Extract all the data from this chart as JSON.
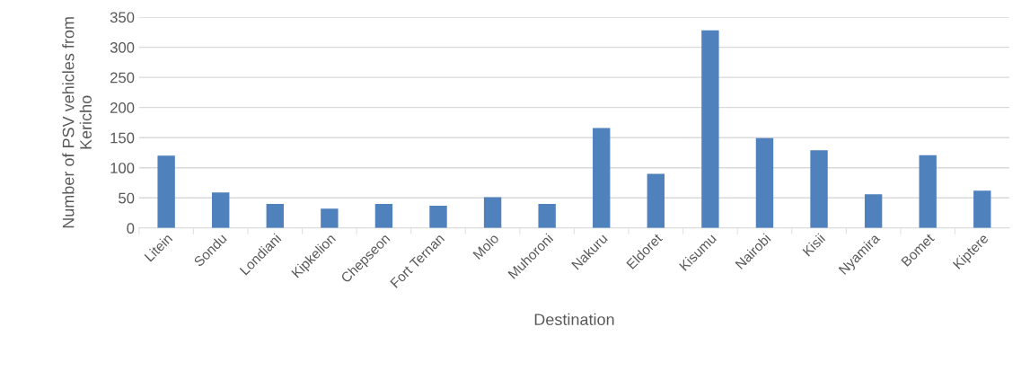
{
  "chart_data": {
    "type": "bar",
    "xlabel": "Destination",
    "ylabel": "Number of PSV vehicles from Kericho",
    "categories": [
      "Litein",
      "Sondu",
      "Londiani",
      "Kipkelion",
      "Chepseon",
      "Fort Ternan",
      "Molo",
      "Muhoroni",
      "Nakuru",
      "Eldoret",
      "Kisumu",
      "Nairobi",
      "Kisii",
      "Nyamira",
      "Bomet",
      "Kiptere"
    ],
    "values": [
      120,
      59,
      40,
      32,
      40,
      37,
      51,
      40,
      166,
      90,
      328,
      149,
      129,
      56,
      121,
      62
    ],
    "color": "#4f81bd",
    "ylim": [
      0,
      350
    ],
    "yticks": [
      0,
      50,
      100,
      150,
      200,
      250,
      300,
      350
    ],
    "grid": "y",
    "legend": false
  }
}
